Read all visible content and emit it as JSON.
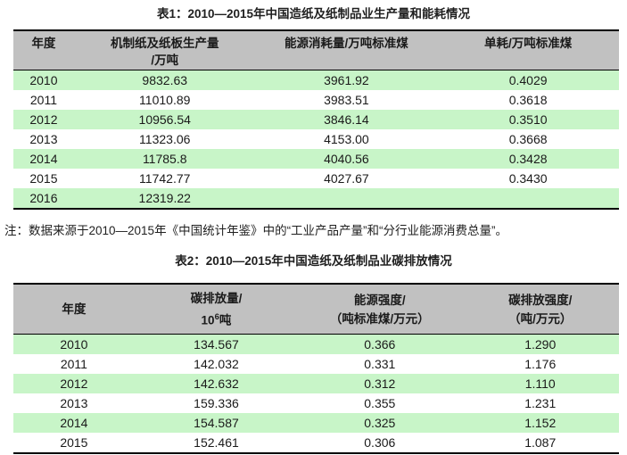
{
  "colors": {
    "page_background": "#ffffff",
    "header_bg": "#c1c1c1",
    "stripe_green": "#c8f5c8",
    "stripe_white": "#ffffff",
    "table_border": "#000000",
    "text": "#1a1a1a"
  },
  "table1": {
    "title": "表1：2010—2015年中国造纸及纸制品业生产量和能耗情况",
    "header": {
      "col1": "年度",
      "col2_line1": "机制纸及纸板生产量",
      "col2_line2": "/万吨",
      "col3": "能源消耗量/万吨标准煤",
      "col4": "单耗/万吨标准煤"
    },
    "rows": [
      [
        "2010",
        "9832.63",
        "3961.92",
        "0.4029"
      ],
      [
        "2011",
        "11010.89",
        "3983.51",
        "0.3618"
      ],
      [
        "2012",
        "10956.54",
        "3846.14",
        "0.3510"
      ],
      [
        "2013",
        "11323.06",
        "4153.00",
        "0.3668"
      ],
      [
        "2014",
        "11785.8",
        "4040.56",
        "0.3428"
      ],
      [
        "2015",
        "11742.77",
        "4027.67",
        "0.3430"
      ],
      [
        "2016",
        "12319.22",
        "",
        ""
      ]
    ]
  },
  "note": "注：数据来源于2010—2015年《中国统计年鉴》中的“工业产品产量”和“分行业能源消费总量”。",
  "table2": {
    "title": "表2：2010—2015年中国造纸及纸制品业碳排放情况",
    "header": {
      "col1": "年度",
      "col2_line1": "碳排放量/",
      "col2_base": "10",
      "col2_sup": "6",
      "col2_unit": "吨",
      "col3_line1": "能源强度/",
      "col3_line2": "（吨标准煤/万元）",
      "col4_line1": "碳排放强度/",
      "col4_line2": "（吨/万元）"
    },
    "rows": [
      [
        "2010",
        "134.567",
        "0.366",
        "1.290"
      ],
      [
        "2011",
        "142.032",
        "0.331",
        "1.176"
      ],
      [
        "2012",
        "142.632",
        "0.312",
        "1.110"
      ],
      [
        "2013",
        "159.336",
        "0.355",
        "1.231"
      ],
      [
        "2014",
        "154.587",
        "0.325",
        "1.152"
      ],
      [
        "2015",
        "152.461",
        "0.306",
        "1.087"
      ]
    ]
  }
}
